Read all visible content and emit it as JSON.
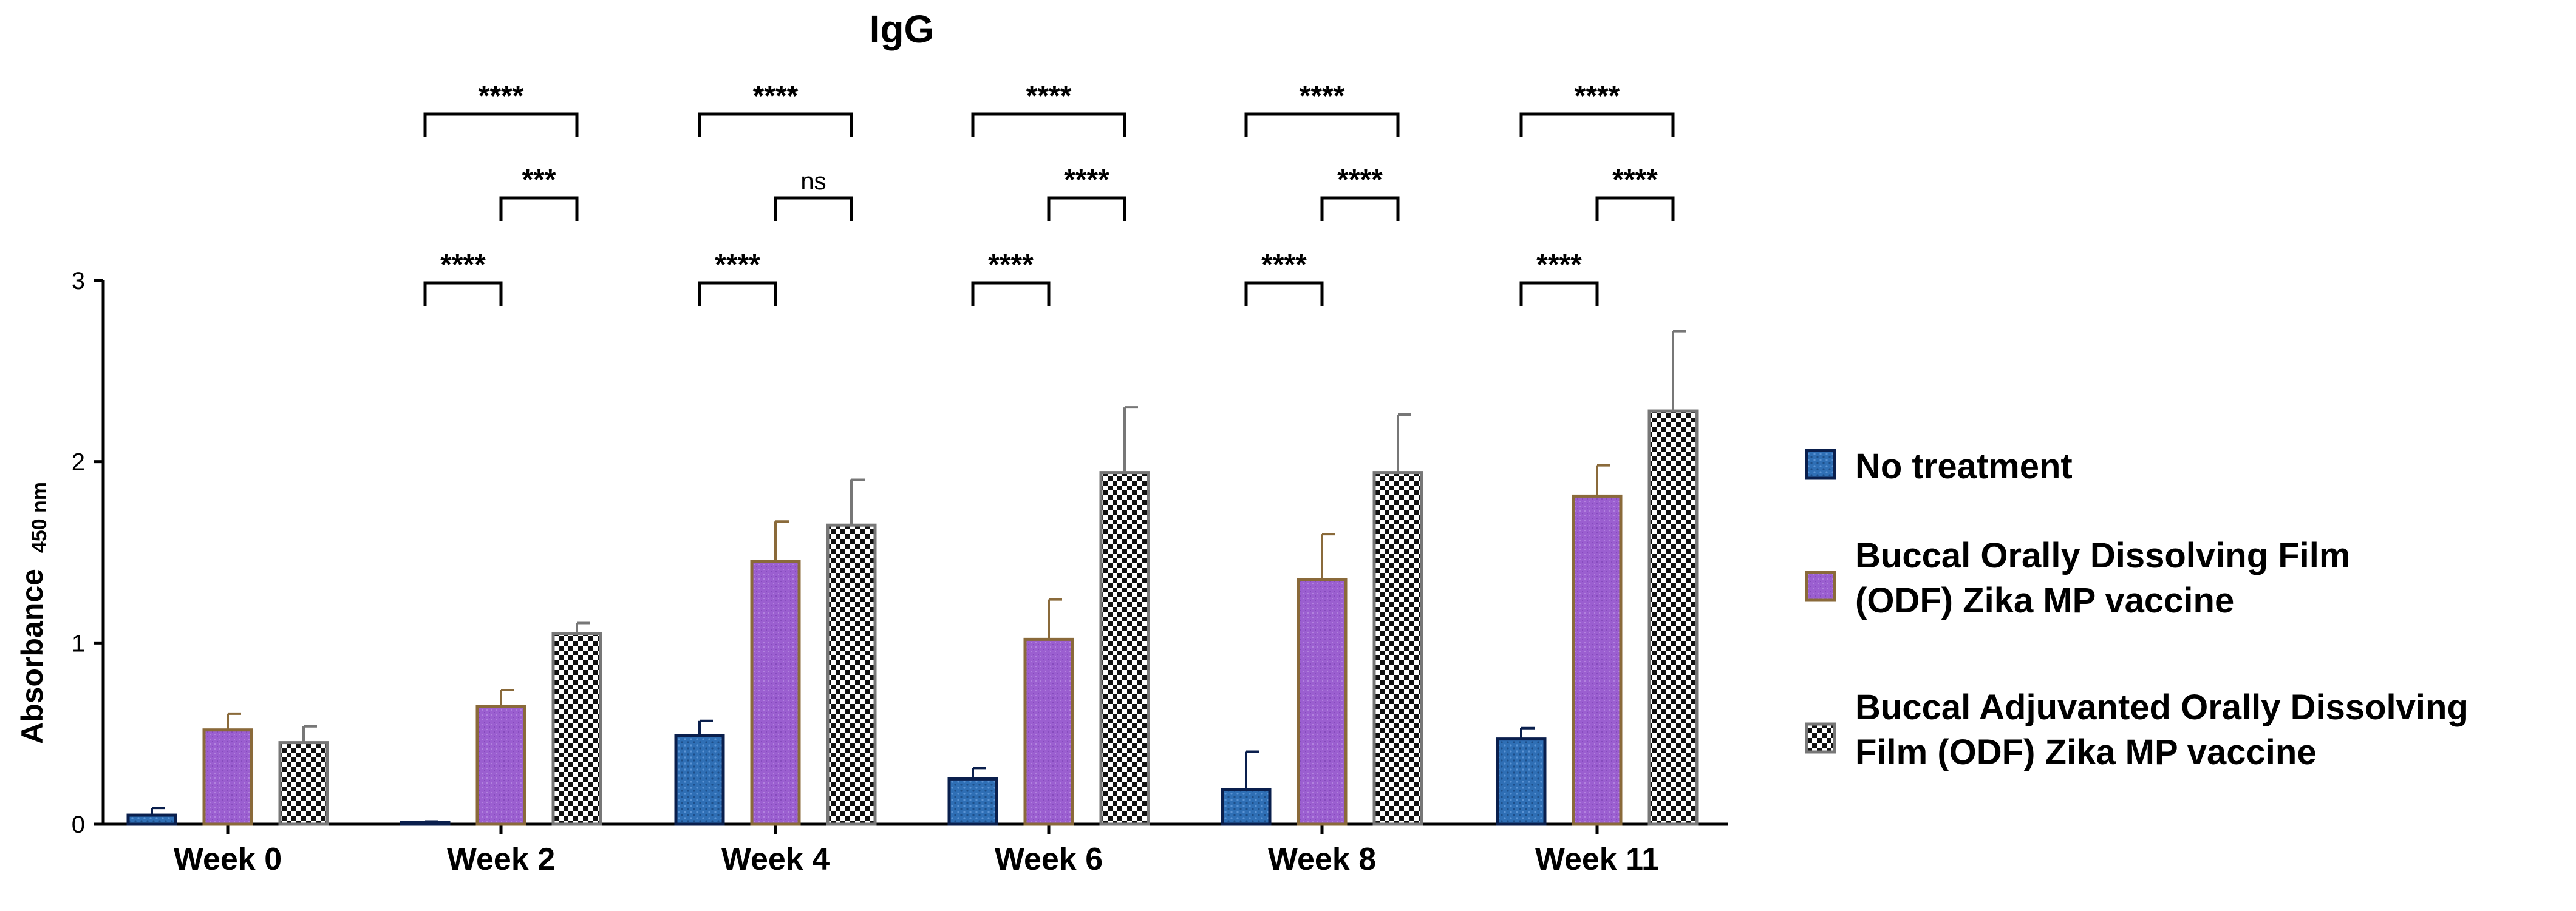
{
  "chart_data": {
    "type": "bar",
    "title": "IgG",
    "ylabel": "Absorbance",
    "ylabel_sub": "450 nm",
    "ylim": [
      0,
      3
    ],
    "yticks": [
      "0",
      "1",
      "2",
      "3"
    ],
    "categories": [
      "Week 0",
      "Week 2",
      "Week 4",
      "Week 6",
      "Week 8",
      "Week 11"
    ],
    "series": [
      {
        "name": "No treatment",
        "color": "#2f6fb5",
        "edge": "#0a1f4d",
        "pattern": "dots",
        "values": [
          0.05,
          0.01,
          0.49,
          0.25,
          0.19,
          0.47
        ],
        "errors": [
          0.04,
          0.005,
          0.08,
          0.06,
          0.21,
          0.06
        ]
      },
      {
        "name": "Buccal Orally Dissolving Film (ODF) Zika MP vaccine",
        "legend_lines": [
          "Buccal Orally Dissolving Film",
          "(ODF) Zika MP vaccine"
        ],
        "color": "#9b5fd0",
        "edge": "#8a6a3a",
        "pattern": "fine",
        "values": [
          0.52,
          0.65,
          1.45,
          1.02,
          1.35,
          1.81
        ],
        "errors": [
          0.09,
          0.09,
          0.22,
          0.22,
          0.25,
          0.17
        ]
      },
      {
        "name": "Buccal Adjuvanted Orally Dissolving Film (ODF) Zika MP vaccine",
        "legend_lines": [
          "Buccal Adjuvanted Orally Dissolving",
          "Film (ODF) Zika MP vaccine"
        ],
        "color": "#ffffff",
        "edge": "#777777",
        "pattern": "checker",
        "values": [
          0.45,
          1.05,
          1.65,
          1.94,
          1.94,
          2.28
        ],
        "errors": [
          0.09,
          0.06,
          0.25,
          0.36,
          0.32,
          0.44
        ]
      }
    ],
    "significance": [
      {
        "category": "Week 2",
        "top": "****",
        "upper_right": "***",
        "lower_left": "****"
      },
      {
        "category": "Week 4",
        "top": "****",
        "upper_right": "ns",
        "lower_left": "****"
      },
      {
        "category": "Week 6",
        "top": "****",
        "upper_right": "****",
        "lower_left": "****"
      },
      {
        "category": "Week 8",
        "top": "****",
        "upper_right": "****",
        "lower_left": "****"
      },
      {
        "category": "Week 11",
        "top": "****",
        "upper_right": "****",
        "lower_left": "****"
      }
    ],
    "legend_position": "right",
    "grid": false
  }
}
